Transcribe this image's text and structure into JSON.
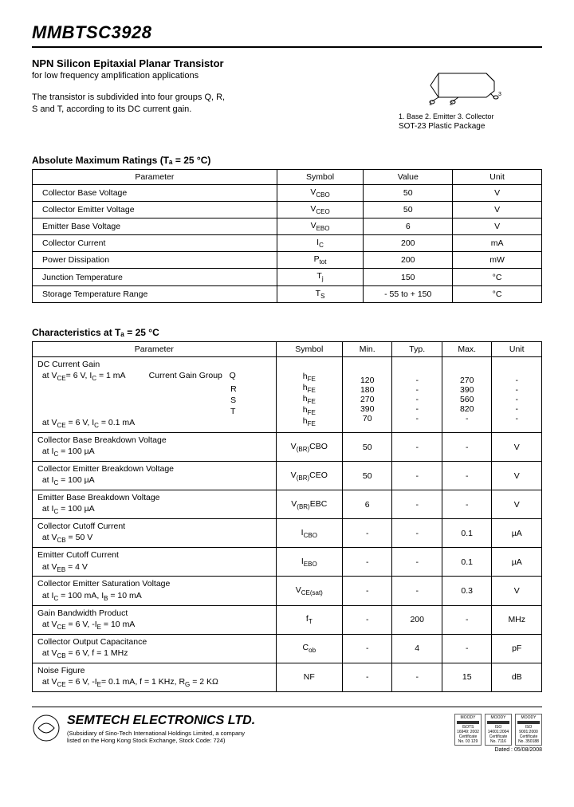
{
  "part_number": "MMBTSC3928",
  "subtitle": "NPN Silicon Epitaxial Planar Transistor",
  "subtitle_desc": "for low frequency amplification applications",
  "description": "The transistor is subdivided into four groups Q, R,\nS and T, according to its DC current gain.",
  "package": {
    "pins": "1. Base   2. Emitter   3. Collector",
    "name": "SOT-23 Plastic Package"
  },
  "abs_max": {
    "title": "Absolute Maximum Ratings (Tₐ = 25 °C)",
    "headers": [
      "Parameter",
      "Symbol",
      "Value",
      "Unit"
    ],
    "rows": [
      [
        "Collector Base Voltage",
        "V_CBO",
        "50",
        "V"
      ],
      [
        "Collector Emitter Voltage",
        "V_CEO",
        "50",
        "V"
      ],
      [
        "Emitter Base Voltage",
        "V_EBO",
        "6",
        "V"
      ],
      [
        "Collector Current",
        "I_C",
        "200",
        "mA"
      ],
      [
        "Power Dissipation",
        "P_tot",
        "200",
        "mW"
      ],
      [
        "Junction Temperature",
        "T_j",
        "150",
        "°C"
      ],
      [
        "Storage Temperature Range",
        "T_S",
        "- 55 to + 150",
        "°C"
      ]
    ]
  },
  "characteristics": {
    "title": "Characteristics at Tₐ = 25 °C",
    "headers": [
      "Parameter",
      "Symbol",
      "Min.",
      "Typ.",
      "Max.",
      "Unit"
    ],
    "rows": [
      {
        "param_lines": [
          "DC Current Gain",
          "  at V_CE= 6 V, I_C = 1 mA          Current Gain Group   Q",
          "                                                                                   R",
          "                                                                                   S",
          "                                                                                   T",
          "  at V_CE = 6 V, I_C = 0.1 mA"
        ],
        "symbols": [
          "",
          "h_FE",
          "h_FE",
          "h_FE",
          "h_FE",
          "h_FE"
        ],
        "mins": [
          "",
          "120",
          "180",
          "270",
          "390",
          "70"
        ],
        "typs": [
          "",
          "-",
          "-",
          "-",
          "-",
          "-"
        ],
        "maxs": [
          "",
          "270",
          "390",
          "560",
          "820",
          "-"
        ],
        "units": [
          "",
          "-",
          "-",
          "-",
          "-",
          "-"
        ]
      },
      {
        "param": "Collector Base Breakdown Voltage\n  at I_C = 100 µA",
        "symbol": "V_(BR)CBO",
        "min": "50",
        "typ": "-",
        "max": "-",
        "unit": "V"
      },
      {
        "param": "Collector Emitter Breakdown Voltage\n  at I_C = 100 µA",
        "symbol": "V_(BR)CEO",
        "min": "50",
        "typ": "-",
        "max": "-",
        "unit": "V"
      },
      {
        "param": "Emitter Base Breakdown Voltage\n  at I_C = 100 µA",
        "symbol": "V_(BR)EBC",
        "min": "6",
        "typ": "-",
        "max": "-",
        "unit": "V"
      },
      {
        "param": "Collector Cutoff Current\n  at V_CB = 50 V",
        "symbol": "I_CBO",
        "min": "-",
        "typ": "-",
        "max": "0.1",
        "unit": "µA"
      },
      {
        "param": "Emitter Cutoff Current\n  at V_EB = 4 V",
        "symbol": "I_EBO",
        "min": "-",
        "typ": "-",
        "max": "0.1",
        "unit": "µA"
      },
      {
        "param": "Collector Emitter Saturation Voltage\n  at I_C = 100 mA, I_B = 10 mA",
        "symbol": "V_CE(sat)",
        "min": "-",
        "typ": "-",
        "max": "0.3",
        "unit": "V"
      },
      {
        "param": "Gain Bandwidth Product\n  at V_CE = 6 V, -I_E = 10 mA",
        "symbol": "f_T",
        "min": "-",
        "typ": "200",
        "max": "-",
        "unit": "MHz"
      },
      {
        "param": "Collector Output Capacitance\n  at V_CB = 6 V, f = 1 MHz",
        "symbol": "C_ob",
        "min": "-",
        "typ": "4",
        "max": "-",
        "unit": "pF"
      },
      {
        "param": "Noise Figure\n  at V_CE = 6 V, -I_E= 0.1 mA, f = 1 KHz, R_G = 2 KΩ",
        "symbol": "NF",
        "min": "-",
        "typ": "-",
        "max": "15",
        "unit": "dB"
      }
    ]
  },
  "footer": {
    "company": "SEMTECH ELECTRONICS LTD.",
    "subsidiary": "(Subsidiary of Sino-Tech International Holdings Limited, a company\nlisted on the Hong Kong Stock Exchange, Stock Code: 724)",
    "certs": [
      {
        "top": "MOODY",
        "bottom": "ISOTS 16949: 2002\nCertificate No. 03 129"
      },
      {
        "top": "MOODY",
        "bottom": "ISO 14001:2004\nCertificate No. 7116"
      },
      {
        "top": "MOODY",
        "bottom": "ISO 9001:2000\nCertificate No. 350188"
      }
    ],
    "dated": "Dated : 05/08/2008"
  }
}
